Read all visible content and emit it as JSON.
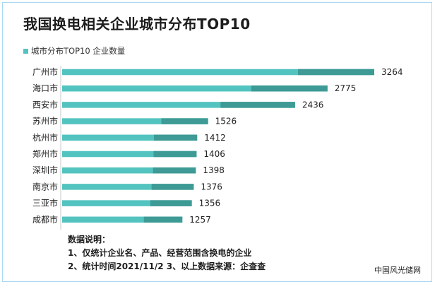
{
  "title": "我国换电相关企业城市分布TOP10",
  "colors": {
    "bar_light": "#53c3c0",
    "bar_dark": "#3e9a95",
    "frame": "#a9d8f3"
  },
  "chart_data": {
    "type": "bar",
    "orientation": "horizontal",
    "title": "我国换电相关企业城市分布TOP10",
    "categories": [
      "广州市",
      "海口市",
      "西安市",
      "苏州市",
      "杭州市",
      "郑州市",
      "深圳市",
      "南京市",
      "三亚市",
      "成都市"
    ],
    "series": [
      {
        "name": "城市分布TOP10 企业数量",
        "values": [
          3264,
          2775,
          2436,
          1526,
          1412,
          1406,
          1398,
          1376,
          1356,
          1257
        ]
      }
    ],
    "xlim": [
      0,
      3264
    ],
    "grid": false,
    "legend": "top-left"
  },
  "notes": {
    "heading": "数据说明：",
    "line1": "1、仅统计企业名、产品、经营范围含换电的企业",
    "line2": "2、统计时间2021/11/2   3、以上数据来源：企查查"
  },
  "watermark": "中国风光储网"
}
